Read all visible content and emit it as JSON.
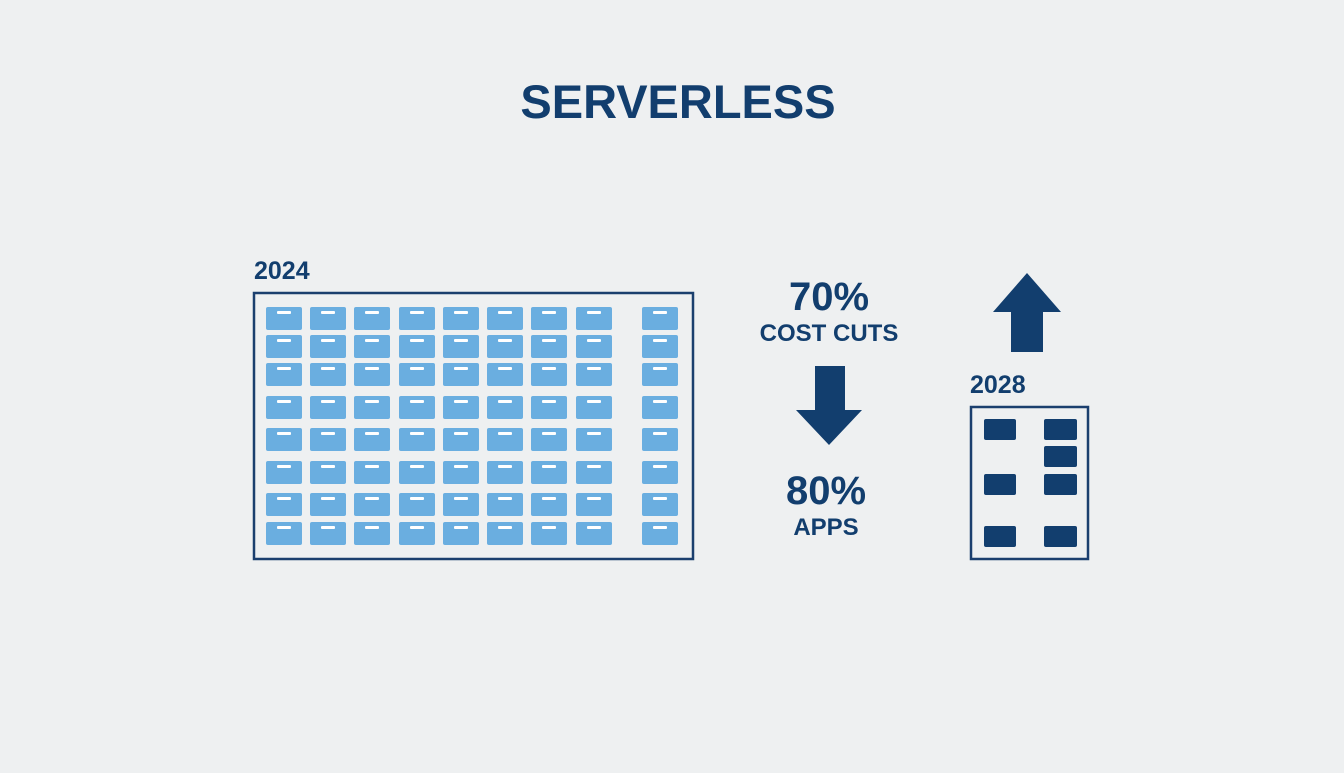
{
  "title": "SERVERLESS",
  "left": {
    "label": "2024"
  },
  "stats": [
    {
      "value": "70%",
      "caption": "COST CUTS"
    },
    {
      "value": "80%",
      "caption": "APPS"
    }
  ],
  "right": {
    "label": "2028"
  }
}
